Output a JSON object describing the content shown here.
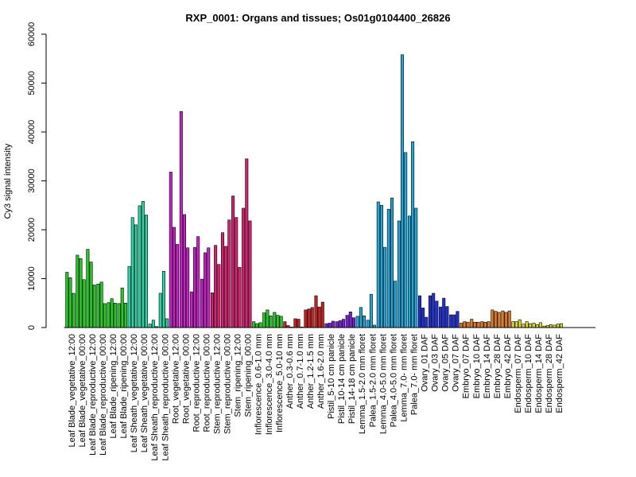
{
  "chart_data": {
    "type": "bar",
    "title": "RXP_0001: Organs and tissues; Os01g0104400_26826",
    "xlabel": "",
    "ylabel": "Cy3 signal intensity",
    "ylim": [
      0,
      60000
    ],
    "yticks": [
      0,
      10000,
      20000,
      30000,
      40000,
      50000,
      60000
    ],
    "grid": false,
    "legend": "none",
    "categories": [
      "Leaf Blade_vegetative_12:00",
      "Leaf Blade_vegetative_00:00",
      "Leaf Blade_reproductive_12:00",
      "Leaf Blade_reproductive_00:00",
      "Leaf Blade_ripening_12:00",
      "Leaf Blade_ripening_00:00",
      "Leaf Sheath_vegetative_12:00",
      "Leaf Sheath_vegetative_00:00",
      "Leaf Sheath_reproductive_12:00",
      "Leaf Sheath_reproductive_00:00",
      "Root_vegetative_12:00",
      "Root_vegetative_00:00",
      "Root_reproductive_12:00",
      "Root_reproductive_00:00",
      "Stem_reproductive_12:00",
      "Stem_reproductive_00:00",
      "Stem_ripening_12:00",
      "Stem_ripening_00:00",
      "Inflorescence_0.6-1.0 mm",
      "Inflorescence_3.0-4.0 mm",
      "Inflorescence_5.0-10 mm",
      "Anther_0.3-0.6 mm",
      "Anther_0.7-1.0 mm",
      "Anther_1.2-1.5 mm",
      "Anther_1.6-2.0 mm",
      "Pistil_5-10 cm panicle",
      "Pistil_10-14 cm panicle",
      "Pistil_14-18 cm panicle",
      "Lemma_1.5-2.0 mm floret",
      "Palea_1.5-2.0 mm floret",
      "Lemma_4.0-5.0 mm floret",
      "Palea_4.0-5.0 mm floret",
      "Lemma_7.0- mm floret",
      "Palea_7.0- mm floret",
      "Ovary_01 DAF",
      "Ovary_03 DAF",
      "Ovary_05 DAF",
      "Ovary_07 DAF",
      "Embryo_07 DAF",
      "Embryo_10 DAF",
      "Embryo_14 DAF",
      "Embryo_28 DAF",
      "Embryo_42 DAF",
      "Endosperm_07 DAF",
      "Endosperm_10 DAF",
      "Endosperm_14 DAF",
      "Endosperm_28 DAF",
      "Endosperm_42 DAF"
    ],
    "colors": [
      "#1fce1f",
      "#1fce1f",
      "#1fce1f",
      "#1fce1f",
      "#1fce1f",
      "#1fce1f",
      "#26d7a5",
      "#26d7a5",
      "#26d7a5",
      "#26d7a5",
      "#cc1fcc",
      "#cc1fcc",
      "#cc1fcc",
      "#cc1fcc",
      "#dc1f72",
      "#dc1f72",
      "#dc1f72",
      "#dc1f72",
      "#22cc22",
      "#22cc22",
      "#22cc22",
      "#cc1f1f",
      "#cc1f1f",
      "#cc1f1f",
      "#cc1f1f",
      "#7a1fdc",
      "#7a1fdc",
      "#7a1fdc",
      "#1fa8dc",
      "#1fa8dc",
      "#1fa8dc",
      "#1fa8dc",
      "#1fa8dc",
      "#1fa8dc",
      "#1f2fdc",
      "#1f2fdc",
      "#1f2fdc",
      "#1f2fdc",
      "#e07a1f",
      "#e07a1f",
      "#e07a1f",
      "#e07a1f",
      "#e07a1f",
      "#dcdc1f",
      "#dcdc1f",
      "#dcdc1f",
      "#dcdc1f",
      "#dcdc1f"
    ],
    "values": [
      [
        11300,
        10200,
        7000
      ],
      [
        14800,
        14100,
        9800
      ],
      [
        16000,
        13400,
        8700
      ],
      [
        8900,
        9300,
        4900
      ],
      [
        5100,
        5900,
        5000
      ],
      [
        4900,
        8100,
        5000
      ],
      [
        12500,
        22500,
        21000
      ],
      [
        24900,
        25800,
        23000
      ],
      [
        700,
        1500,
        200
      ],
      [
        7000,
        11500,
        1800
      ],
      [
        31800,
        20500,
        17000
      ],
      [
        44200,
        23100,
        16300
      ],
      [
        7300,
        16400,
        18600
      ],
      [
        9900,
        15300,
        16300
      ],
      [
        7100,
        16800,
        12900
      ],
      [
        19400,
        16600,
        22000
      ],
      [
        26900,
        22500,
        12300
      ],
      [
        24400,
        34500,
        21800
      ],
      [
        1200,
        800,
        1000
      ],
      [
        3000,
        3600,
        2400
      ],
      [
        3100,
        2500,
        2300
      ],
      [
        1200,
        400,
        100
      ],
      [
        1800,
        1700,
        100
      ],
      [
        3600,
        3800,
        4100
      ],
      [
        6500,
        4200,
        5200
      ],
      [
        800,
        900,
        1300
      ],
      [
        1200,
        1400,
        1700
      ],
      [
        2500,
        3200,
        2000
      ],
      [
        2300,
        4100,
        2400
      ],
      [
        1500,
        6800,
        500
      ],
      [
        25700,
        25000,
        16400
      ],
      [
        24200,
        26500,
        9500
      ],
      [
        21800,
        55800,
        35800
      ],
      [
        22800,
        38000,
        24400
      ],
      [
        6500,
        4000,
        2100
      ],
      [
        6500,
        7000,
        5400
      ],
      [
        4200,
        6000,
        4300
      ],
      [
        2600,
        2600,
        3300
      ],
      [
        900,
        1200,
        1100
      ],
      [
        1700,
        1100,
        1100
      ],
      [
        1200,
        1100,
        1200
      ],
      [
        3600,
        3300,
        3100
      ],
      [
        3400,
        3100,
        3400
      ],
      [
        1200,
        1200,
        1600
      ],
      [
        700,
        1200,
        800
      ],
      [
        900,
        600,
        1000
      ],
      [
        300,
        400,
        600
      ],
      [
        500,
        700,
        800
      ]
    ]
  }
}
